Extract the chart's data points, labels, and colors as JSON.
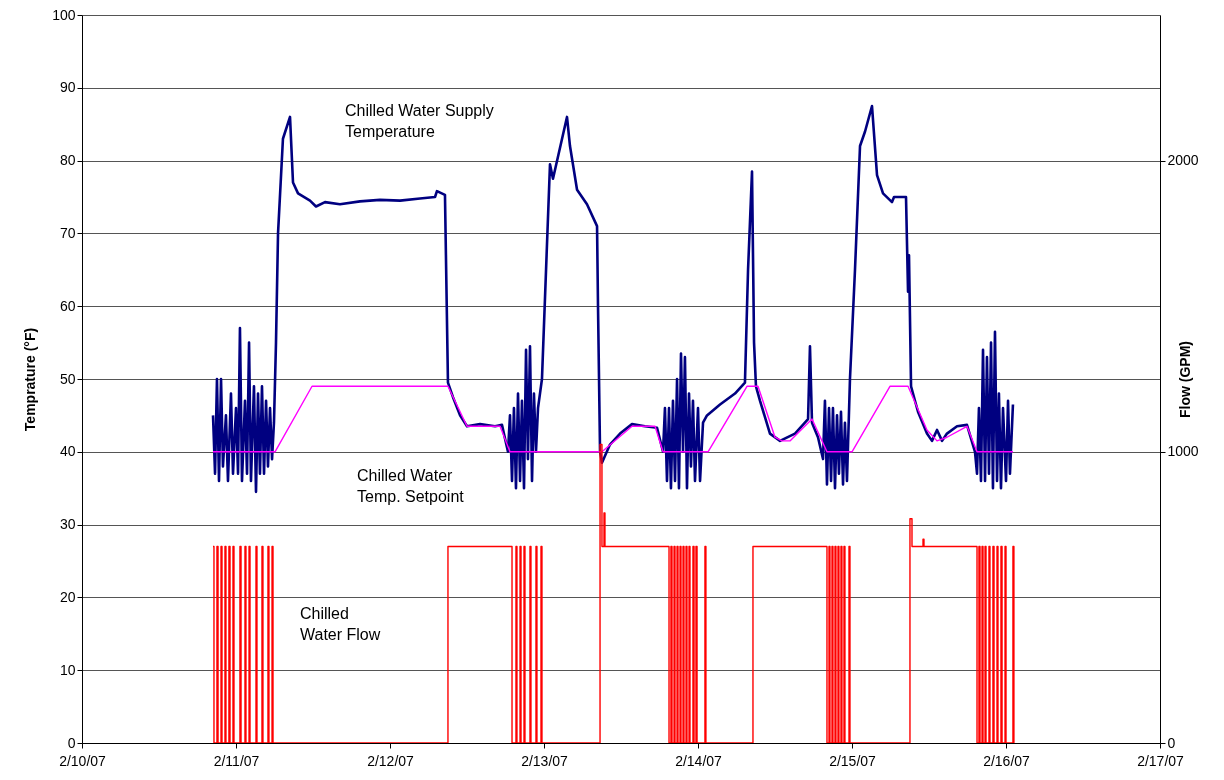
{
  "chart_data": {
    "type": "line",
    "ylabel": "Temprature (°F)",
    "y2label": "Flow (GPM)",
    "xlim": [
      "--02-10",
      "--02-17"
    ],
    "xticks": [
      {
        "value": "--02-10",
        "label": "2/10/07"
      },
      {
        "value": "--02-11",
        "label": "2/11/07"
      },
      {
        "value": "--02-12",
        "label": "2/12/07"
      },
      {
        "value": "--02-13",
        "label": "2/13/07"
      },
      {
        "value": "--02-14",
        "label": "2/14/07"
      },
      {
        "value": "--02-15",
        "label": "2/15/07"
      },
      {
        "value": "--02-16",
        "label": "2/16/07"
      },
      {
        "value": "--02-17",
        "label": "2/17/07"
      }
    ],
    "ylim": [
      0,
      100
    ],
    "yticks": [
      0,
      10,
      20,
      30,
      40,
      50,
      60,
      70,
      80,
      90,
      100
    ],
    "y2lim": [
      0,
      2500
    ],
    "y2ticks": [
      0,
      1000,
      2000
    ],
    "grid": "y",
    "annotations": [
      "Chilled Water Supply\nTemperature",
      "Chilled Water\nTemp. Setpoint",
      "Chilled\nWater Flow"
    ],
    "series": [
      {
        "color": "#000080",
        "x": [
          "--02-10T20:25",
          "--02-10T20:44",
          "--02-10T21:02",
          "--02-10T21:21",
          "--02-10T21:40",
          "--02-10T21:58",
          "--02-10T22:26",
          "--02-10T22:45",
          "--02-10T23:13",
          "--02-10T23:32",
          "--02-11T00:00",
          "--02-11T00:19",
          "--02-11T00:37",
          "--02-11T00:56",
          "--02-11T01:24",
          "--02-11T01:43",
          "--02-11T02:02",
          "--02-11T02:20",
          "--02-11T02:48",
          "--02-11T03:07",
          "--02-11T03:26",
          "--02-11T03:44",
          "--02-11T04:03",
          "--02-11T04:22",
          "--02-11T04:41",
          "--02-11T04:59",
          "--02-11T05:18",
          "--02-11T05:37",
          "--02-11T05:55",
          "--02-11T06:14",
          "--02-11T06:33",
          "--02-11T07:19",
          "--02-11T08:25",
          "--02-11T08:53",
          "--02-11T09:40",
          "--02-11T11:32",
          "--02-11T12:28",
          "--02-11T13:52",
          "--02-11T16:12",
          "--02-11T19:19",
          "--02-11T22:26",
          "--02-12T01:34",
          "--02-12T04:41",
          "--02-12T07:01",
          "--02-12T07:19",
          "--02-12T08:34",
          "--02-12T09:02",
          "--02-12T09:49",
          "--02-12T10:55",
          "--02-12T12:00",
          "--02-12T14:02",
          "--02-12T16:22",
          "--02-12T17:27",
          "--02-12T18:23",
          "--02-12T18:42",
          "--02-12T19:01",
          "--02-12T19:19",
          "--02-12T19:38",
          "--02-12T19:57",
          "--02-12T20:16",
          "--02-12T20:34",
          "--02-12T20:53",
          "--02-12T21:12",
          "--02-12T21:30",
          "--02-12T21:49",
          "--02-12T22:08",
          "--02-12T22:26",
          "--02-12T22:45",
          "--02-12T23:04",
          "--02-12T23:41",
          "--02-13T00:56",
          "--02-13T01:24",
          "--02-13T03:35",
          "--02-13T04:03",
          "--02-13T05:09",
          "--02-13T06:42",
          "--02-13T08:16",
          "--02-13T08:25",
          "--02-13T08:44",
          "--02-13T09:02",
          "--02-13T10:17",
          "--02-13T11:51",
          "--02-13T13:43",
          "--02-13T15:44",
          "--02-13T17:37",
          "--02-13T18:33",
          "--02-13T18:51",
          "--02-13T19:10",
          "--02-13T19:29",
          "--02-13T19:47",
          "--02-13T20:06",
          "--02-13T20:25",
          "--02-13T20:44",
          "--02-13T21:02",
          "--02-13T21:21",
          "--02-13T21:40",
          "--02-13T21:58",
          "--02-13T22:17",
          "--02-13T22:36",
          "--02-13T22:54",
          "--02-13T23:13",
          "--02-13T23:32",
          "--02-14T00:00",
          "--02-14T00:19",
          "--02-14T00:47",
          "--02-14T01:24",
          "--02-14T03:26",
          "--02-14T05:46",
          "--02-14T07:19",
          "--02-14T07:48",
          "--02-14T08:25",
          "--02-14T08:44",
          "--02-14T09:02",
          "--02-14T09:40",
          "--02-14T11:13",
          "--02-14T12:47",
          "--02-14T15:07",
          "--02-14T17:09",
          "--02-14T17:27",
          "--02-14T17:46",
          "--02-14T18:42",
          "--02-14T19:29",
          "--02-14T19:47",
          "--02-14T20:06",
          "--02-14T20:25",
          "--02-14T20:44",
          "--02-14T21:02",
          "--02-14T21:21",
          "--02-14T21:40",
          "--02-14T21:58",
          "--02-14T22:17",
          "--02-14T22:36",
          "--02-14T22:54",
          "--02-14T23:13",
          "--02-14T23:41",
          "--02-15T00:28",
          "--02-15T01:15",
          "--02-15T02:02",
          "--02-15T03:07",
          "--02-15T03:54",
          "--02-15T04:50",
          "--02-15T06:14",
          "--02-15T06:33",
          "--02-15T08:25",
          "--02-15T08:44",
          "--02-15T08:53",
          "--02-15T09:12",
          "--02-15T10:17",
          "--02-15T11:41",
          "--02-15T12:28",
          "--02-15T13:15",
          "--02-15T14:02",
          "--02-15T14:48",
          "--02-15T16:22",
          "--02-15T17:55",
          "--02-15T19:10",
          "--02-15T19:29",
          "--02-15T19:47",
          "--02-15T20:06",
          "--02-15T20:25",
          "--02-15T20:44",
          "--02-15T21:02",
          "--02-15T21:21",
          "--02-15T21:40",
          "--02-15T21:58",
          "--02-15T22:17",
          "--02-15T22:36",
          "--02-15T22:54",
          "--02-15T23:13",
          "--02-15T23:32",
          "--02-16T00:00",
          "--02-16T00:19",
          "--02-16T00:37",
          "--02-16T01:05"
        ],
        "values": [
          45,
          37,
          50,
          36,
          50,
          38,
          45,
          36,
          48,
          37,
          46,
          37,
          57,
          36,
          47,
          37,
          55,
          36,
          49,
          34.5,
          48,
          37,
          49,
          37,
          47,
          38,
          46,
          39,
          44,
          55,
          70,
          83,
          86,
          77,
          75.5,
          74.5,
          73.7,
          74.3,
          74,
          74.4,
          74.6,
          74.5,
          74.8,
          75,
          75.8,
          75.3,
          49.5,
          47.5,
          45,
          43.5,
          43.8,
          43.5,
          43.7,
          40,
          45,
          36,
          46,
          35,
          48,
          36,
          47,
          35,
          54,
          39,
          54.5,
          36,
          48,
          40,
          46,
          50,
          79.5,
          77.5,
          86,
          82,
          76,
          74,
          71,
          60,
          40,
          38.5,
          41,
          42.5,
          43.8,
          43.5,
          43.3,
          40,
          46,
          36,
          46,
          35,
          47,
          36,
          50,
          35,
          53.5,
          40,
          53,
          35,
          48,
          38,
          47,
          36,
          46,
          36,
          44,
          45,
          46.5,
          48,
          49.5,
          65,
          78.5,
          55,
          49,
          47,
          42.5,
          41.5,
          42.5,
          44.5,
          54.5,
          44,
          42,
          39,
          47,
          35.5,
          46,
          36,
          46,
          35,
          45,
          37,
          45.5,
          35.5,
          44,
          36,
          50,
          65,
          82,
          84,
          87.5,
          78,
          75.5,
          74.3,
          75,
          75,
          62,
          67,
          49,
          45.5,
          42.5,
          41.5,
          43,
          41.5,
          42.5,
          43.5,
          43.7,
          40,
          37,
          46,
          36,
          54,
          36,
          53,
          37,
          55,
          35,
          56.5,
          36,
          48,
          35,
          46,
          36,
          47,
          37,
          46.5
        ]
      },
      {
        "color": "#ff00ff",
        "x": [
          "--02-10T20:25",
          "--02-11T06:05",
          "--02-11T11:51",
          "--02-12T09:02",
          "--02-12T12:00",
          "--02-12T17:09",
          "--02-12T18:42",
          "--02-13T09:02",
          "--02-13T13:43",
          "--02-13T17:18",
          "--02-13T18:33",
          "--02-14T01:34",
          "--02-14T07:38",
          "--02-14T09:21",
          "--02-14T12:00",
          "--02-14T13:05",
          "--02-14T14:20",
          "--02-14T17:46",
          "--02-14T20:06",
          "--02-15T00:00",
          "--02-15T05:55",
          "--02-15T08:44",
          "--02-15T11:41",
          "--02-15T13:15",
          "--02-15T14:48",
          "--02-15T17:55",
          "--02-15T19:29",
          "--02-16T01:05"
        ],
        "values": [
          40,
          40,
          49,
          49,
          43.5,
          43.5,
          40,
          40,
          43.5,
          43.5,
          40,
          40,
          49,
          49,
          42,
          41.5,
          41.5,
          44.5,
          40,
          40,
          49,
          49,
          43,
          41.5,
          42,
          43.5,
          40,
          40
        ]
      },
      {
        "type": "step",
        "axis": "y2",
        "color": "#ff0000",
        "x": [
          "--02-10T20:25",
          "--02-10T20:34",
          "--02-10T21:02",
          "--02-10T21:12",
          "--02-10T21:40",
          "--02-10T21:49",
          "--02-10T22:17",
          "--02-10T22:26",
          "--02-10T22:54",
          "--02-10T23:04",
          "--02-10T23:32",
          "--02-10T23:41",
          "--02-11T00:37",
          "--02-11T00:47",
          "--02-11T01:24",
          "--02-11T01:33",
          "--02-11T02:02",
          "--02-11T02:11",
          "--02-11T03:07",
          "--02-11T03:16",
          "--02-11T04:03",
          "--02-11T04:12",
          "--02-11T04:59",
          "--02-11T05:08",
          "--02-11T05:37",
          "--02-11T05:46",
          "--02-12T09:02",
          "--02-12T19:01",
          "--02-12T19:38",
          "--02-12T19:47",
          "--02-12T20:16",
          "--02-12T20:25",
          "--02-12T20:53",
          "--02-12T21:02",
          "--02-12T21:49",
          "--02-12T21:58",
          "--02-12T22:45",
          "--02-12T22:54",
          "--02-12T23:32",
          "--02-12T23:41",
          "--02-13T08:44",
          "--02-13T09:02",
          "--02-13T09:21",
          "--02-13T09:30",
          "--02-13T19:29",
          "--02-13T19:47",
          "--02-13T19:57",
          "--02-13T20:16",
          "--02-13T20:25",
          "--02-13T20:44",
          "--02-13T20:53",
          "--02-13T21:12",
          "--02-13T21:21",
          "--02-13T21:40",
          "--02-13T21:49",
          "--02-13T22:08",
          "--02-13T22:17",
          "--02-13T22:36",
          "--02-13T22:45",
          "--02-13T23:13",
          "--02-13T23:23",
          "--02-13T23:41",
          "--02-13T23:51",
          "--02-14T01:05",
          "--02-14T01:14",
          "--02-14T08:34",
          "--02-14T20:06",
          "--02-14T20:25",
          "--02-14T20:34",
          "--02-14T20:53",
          "--02-14T21:02",
          "--02-14T21:21",
          "--02-14T21:30",
          "--02-14T21:49",
          "--02-14T21:58",
          "--02-14T22:17",
          "--02-14T22:26",
          "--02-14T22:45",
          "--02-14T22:54",
          "--02-14T23:32",
          "--02-14T23:41",
          "--02-15T09:02",
          "--02-15T09:21",
          "--02-15T11:04",
          "--02-15T11:13",
          "--02-15T19:29",
          "--02-15T19:47",
          "--02-15T19:57",
          "--02-15T20:16",
          "--02-15T20:25",
          "--02-15T20:44",
          "--02-15T20:53",
          "--02-15T21:21",
          "--02-15T21:30",
          "--02-15T21:58",
          "--02-15T22:08",
          "--02-15T22:36",
          "--02-15T22:45",
          "--02-15T23:13",
          "--02-15T23:23",
          "--02-15T23:51",
          "--02-16T00:00",
          "--02-16T01:05",
          "--02-16T01:14"
        ],
        "values": [
          675,
          0,
          675,
          0,
          675,
          0,
          675,
          0,
          675,
          0,
          675,
          0,
          675,
          0,
          675,
          0,
          675,
          0,
          675,
          0,
          675,
          0,
          675,
          0,
          675,
          0,
          675,
          0,
          675,
          0,
          675,
          0,
          675,
          0,
          675,
          0,
          675,
          0,
          675,
          0,
          1025,
          675,
          790,
          675,
          0,
          675,
          0,
          675,
          0,
          675,
          0,
          675,
          0,
          675,
          0,
          675,
          0,
          675,
          0,
          675,
          0,
          675,
          0,
          675,
          0,
          675,
          0,
          675,
          0,
          675,
          0,
          675,
          0,
          675,
          0,
          675,
          0,
          675,
          0,
          675,
          0,
          770,
          675,
          700,
          675,
          0,
          675,
          0,
          675,
          0,
          675,
          0,
          675,
          0,
          675,
          0,
          675,
          0,
          675,
          0,
          675,
          0,
          675,
          0
        ]
      }
    ]
  }
}
